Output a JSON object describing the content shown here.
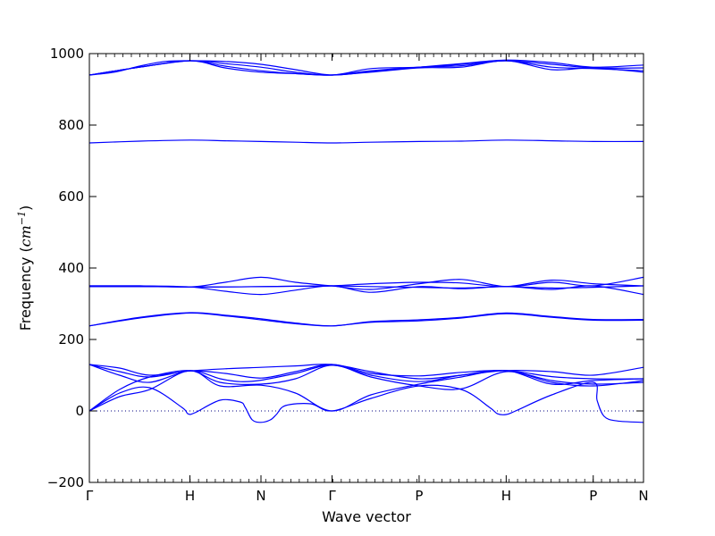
{
  "chart_data": {
    "type": "line",
    "title": "",
    "xlabel": "Wave vector",
    "ylabel_prefix": "Frequency (",
    "ylabel_unit_base": "cm",
    "ylabel_unit_exp": "−1",
    "ylabel_suffix": ")",
    "ylim": [
      -200,
      1000
    ],
    "grid": false,
    "series_color": "#0000ff",
    "zero_line_color": "#000080",
    "y_ticks": [
      -200,
      0,
      200,
      400,
      600,
      800,
      1000
    ],
    "x_ticks": [
      {
        "label": "Γ",
        "x": 0
      },
      {
        "label": "H",
        "x": 1
      },
      {
        "label": "N",
        "x": 1.707
      },
      {
        "label": "Γ",
        "x": 2.414
      },
      {
        "label": "P",
        "x": 3.28
      },
      {
        "label": "H",
        "x": 4.146
      },
      {
        "label": "P",
        "x": 5.012
      },
      {
        "label": "N",
        "x": 5.512
      }
    ],
    "xlim": [
      0,
      5.512
    ],
    "series": [
      {
        "x": [
          0,
          0.25,
          0.5,
          0.75,
          1,
          1.35,
          1.707,
          2.05,
          2.414,
          2.8,
          3.28,
          3.7,
          4.146,
          4.6,
          5.012,
          5.512
        ],
        "values": [
          940,
          948,
          965,
          978,
          980,
          978,
          970,
          955,
          940,
          950,
          962,
          972,
          982,
          975,
          962,
          968
        ]
      },
      {
        "x": [
          0,
          0.5,
          1,
          1.35,
          1.707,
          2.05,
          2.414,
          2.8,
          3.28,
          3.7,
          4.146,
          4.6,
          5.012,
          5.512
        ],
        "values": [
          940,
          962,
          980,
          972,
          962,
          948,
          940,
          958,
          962,
          970,
          980,
          970,
          960,
          960
        ]
      },
      {
        "x": [
          0,
          0.5,
          1,
          1.35,
          1.707,
          2.05,
          2.414,
          2.8,
          3.28,
          3.7,
          4.146,
          4.6,
          5.012,
          5.512
        ],
        "values": [
          940,
          962,
          980,
          965,
          952,
          944,
          940,
          952,
          962,
          966,
          980,
          962,
          958,
          952
        ]
      },
      {
        "x": [
          0,
          0.5,
          1,
          1.35,
          1.707,
          2.05,
          2.414,
          2.8,
          3.28,
          3.7,
          4.146,
          4.6,
          5.012,
          5.512
        ],
        "values": [
          940,
          962,
          980,
          960,
          948,
          944,
          940,
          948,
          960,
          962,
          980,
          955,
          960,
          948
        ]
      },
      {
        "x": [
          0,
          0.5,
          1,
          1.35,
          1.707,
          2.05,
          2.414,
          2.8,
          3.28,
          3.7,
          4.146,
          4.6,
          5.012,
          5.512
        ],
        "values": [
          750,
          755,
          758,
          756,
          754,
          752,
          750,
          752,
          754,
          755,
          758,
          756,
          754,
          754
        ]
      },
      {
        "x": [
          0,
          0.5,
          1,
          1.35,
          1.707,
          2.05,
          2.414,
          2.8,
          3.28,
          3.7,
          4.146,
          4.6,
          5.012,
          5.512
        ],
        "values": [
          350,
          350,
          347,
          360,
          374,
          360,
          350,
          340,
          356,
          368,
          348,
          360,
          350,
          374
        ]
      },
      {
        "x": [
          0,
          0.5,
          1,
          1.35,
          1.707,
          2.05,
          2.414,
          2.8,
          3.28,
          3.7,
          4.146,
          4.6,
          5.012,
          5.512
        ],
        "values": [
          350,
          350,
          347,
          335,
          326,
          338,
          350,
          332,
          348,
          342,
          348,
          340,
          350,
          326
        ]
      },
      {
        "x": [
          0,
          0.5,
          1,
          1.35,
          1.707,
          2.05,
          2.414,
          2.8,
          3.28,
          3.7,
          4.146,
          4.6,
          5.012,
          5.512
        ],
        "values": [
          348,
          348,
          347,
          347,
          348,
          349,
          350,
          356,
          360,
          358,
          348,
          366,
          356,
          350
        ]
      },
      {
        "x": [
          0,
          0.5,
          1,
          1.35,
          1.707,
          2.05,
          2.414,
          2.8,
          3.28,
          3.7,
          4.146,
          4.6,
          5.012,
          5.512
        ],
        "values": [
          348,
          348,
          347,
          347,
          348,
          349,
          350,
          348,
          346,
          344,
          348,
          344,
          346,
          350
        ]
      },
      {
        "x": [
          0,
          0.5,
          1,
          1.35,
          1.707,
          2.05,
          2.414,
          2.8,
          3.28,
          3.7,
          4.146,
          4.6,
          5.012,
          5.512
        ],
        "values": [
          238,
          262,
          275,
          268,
          258,
          246,
          238,
          250,
          255,
          262,
          274,
          264,
          256,
          256
        ]
      },
      {
        "x": [
          0,
          0.5,
          1,
          1.35,
          1.707,
          2.05,
          2.414,
          2.8,
          3.28,
          3.7,
          4.146,
          4.6,
          5.012,
          5.512
        ],
        "values": [
          238,
          260,
          274,
          266,
          255,
          244,
          238,
          248,
          252,
          260,
          272,
          262,
          254,
          254
        ]
      },
      {
        "x": [
          0,
          0.3,
          0.6,
          1,
          1.35,
          1.707,
          2.05,
          2.414,
          2.8,
          3.28,
          3.7,
          4.146,
          4.6,
          5.012,
          5.512
        ],
        "values": [
          130,
          120,
          100,
          112,
          118,
          122,
          126,
          130,
          110,
          90,
          100,
          113,
          110,
          100,
          122
        ]
      },
      {
        "x": [
          0,
          0.3,
          0.6,
          1,
          1.35,
          1.707,
          2.05,
          2.414,
          2.8,
          3.28,
          3.7,
          4.146,
          4.6,
          5.012,
          5.512
        ],
        "values": [
          130,
          110,
          95,
          112,
          105,
          92,
          110,
          130,
          105,
          98,
          108,
          113,
          96,
          90,
          90
        ]
      },
      {
        "x": [
          0,
          0.3,
          0.6,
          1,
          1.3,
          1.5,
          1.707,
          2.05,
          2.414,
          2.8,
          3.28,
          3.7,
          4.146,
          4.6,
          5.012,
          5.512
        ],
        "values": [
          130,
          100,
          80,
          112,
          90,
          82,
          86,
          105,
          128,
          100,
          82,
          100,
          113,
          85,
          75,
          80
        ]
      },
      {
        "x": [
          0,
          0.3,
          0.6,
          1,
          1.3,
          1.707,
          2.05,
          2.414,
          2.8,
          3.28,
          3.7,
          4.146,
          4.6,
          5.012,
          5.512
        ],
        "values": [
          0,
          60,
          95,
          113,
          80,
          75,
          90,
          128,
          95,
          70,
          62,
          110,
          80,
          70,
          85
        ]
      },
      {
        "x": [
          0,
          0.3,
          0.6,
          1,
          1.3,
          1.707,
          2.05,
          2.414,
          2.8,
          3.28,
          3.7,
          4.146,
          4.6,
          5.012,
          5.512
        ],
        "values": [
          0,
          40,
          60,
          113,
          70,
          72,
          50,
          0,
          45,
          75,
          95,
          113,
          75,
          85,
          90
        ]
      },
      {
        "x": [
          0,
          0.3,
          0.6,
          0.92,
          0.98,
          1.05,
          1.3,
          1.5,
          1.55,
          1.62,
          1.707,
          1.8,
          1.86,
          1.95,
          2.2,
          2.414,
          2.8,
          3.28,
          3.7,
          3.98,
          4.06,
          4.146,
          4.24,
          4.6,
          5.012,
          5.05,
          5.12,
          5.25,
          5.512
        ],
        "values": [
          0,
          50,
          65,
          10,
          -8,
          -5,
          30,
          25,
          10,
          -25,
          -32,
          -25,
          -10,
          15,
          20,
          0,
          35,
          70,
          60,
          10,
          -8,
          -10,
          0,
          45,
          80,
          30,
          -15,
          -28,
          -32
        ]
      }
    ]
  }
}
